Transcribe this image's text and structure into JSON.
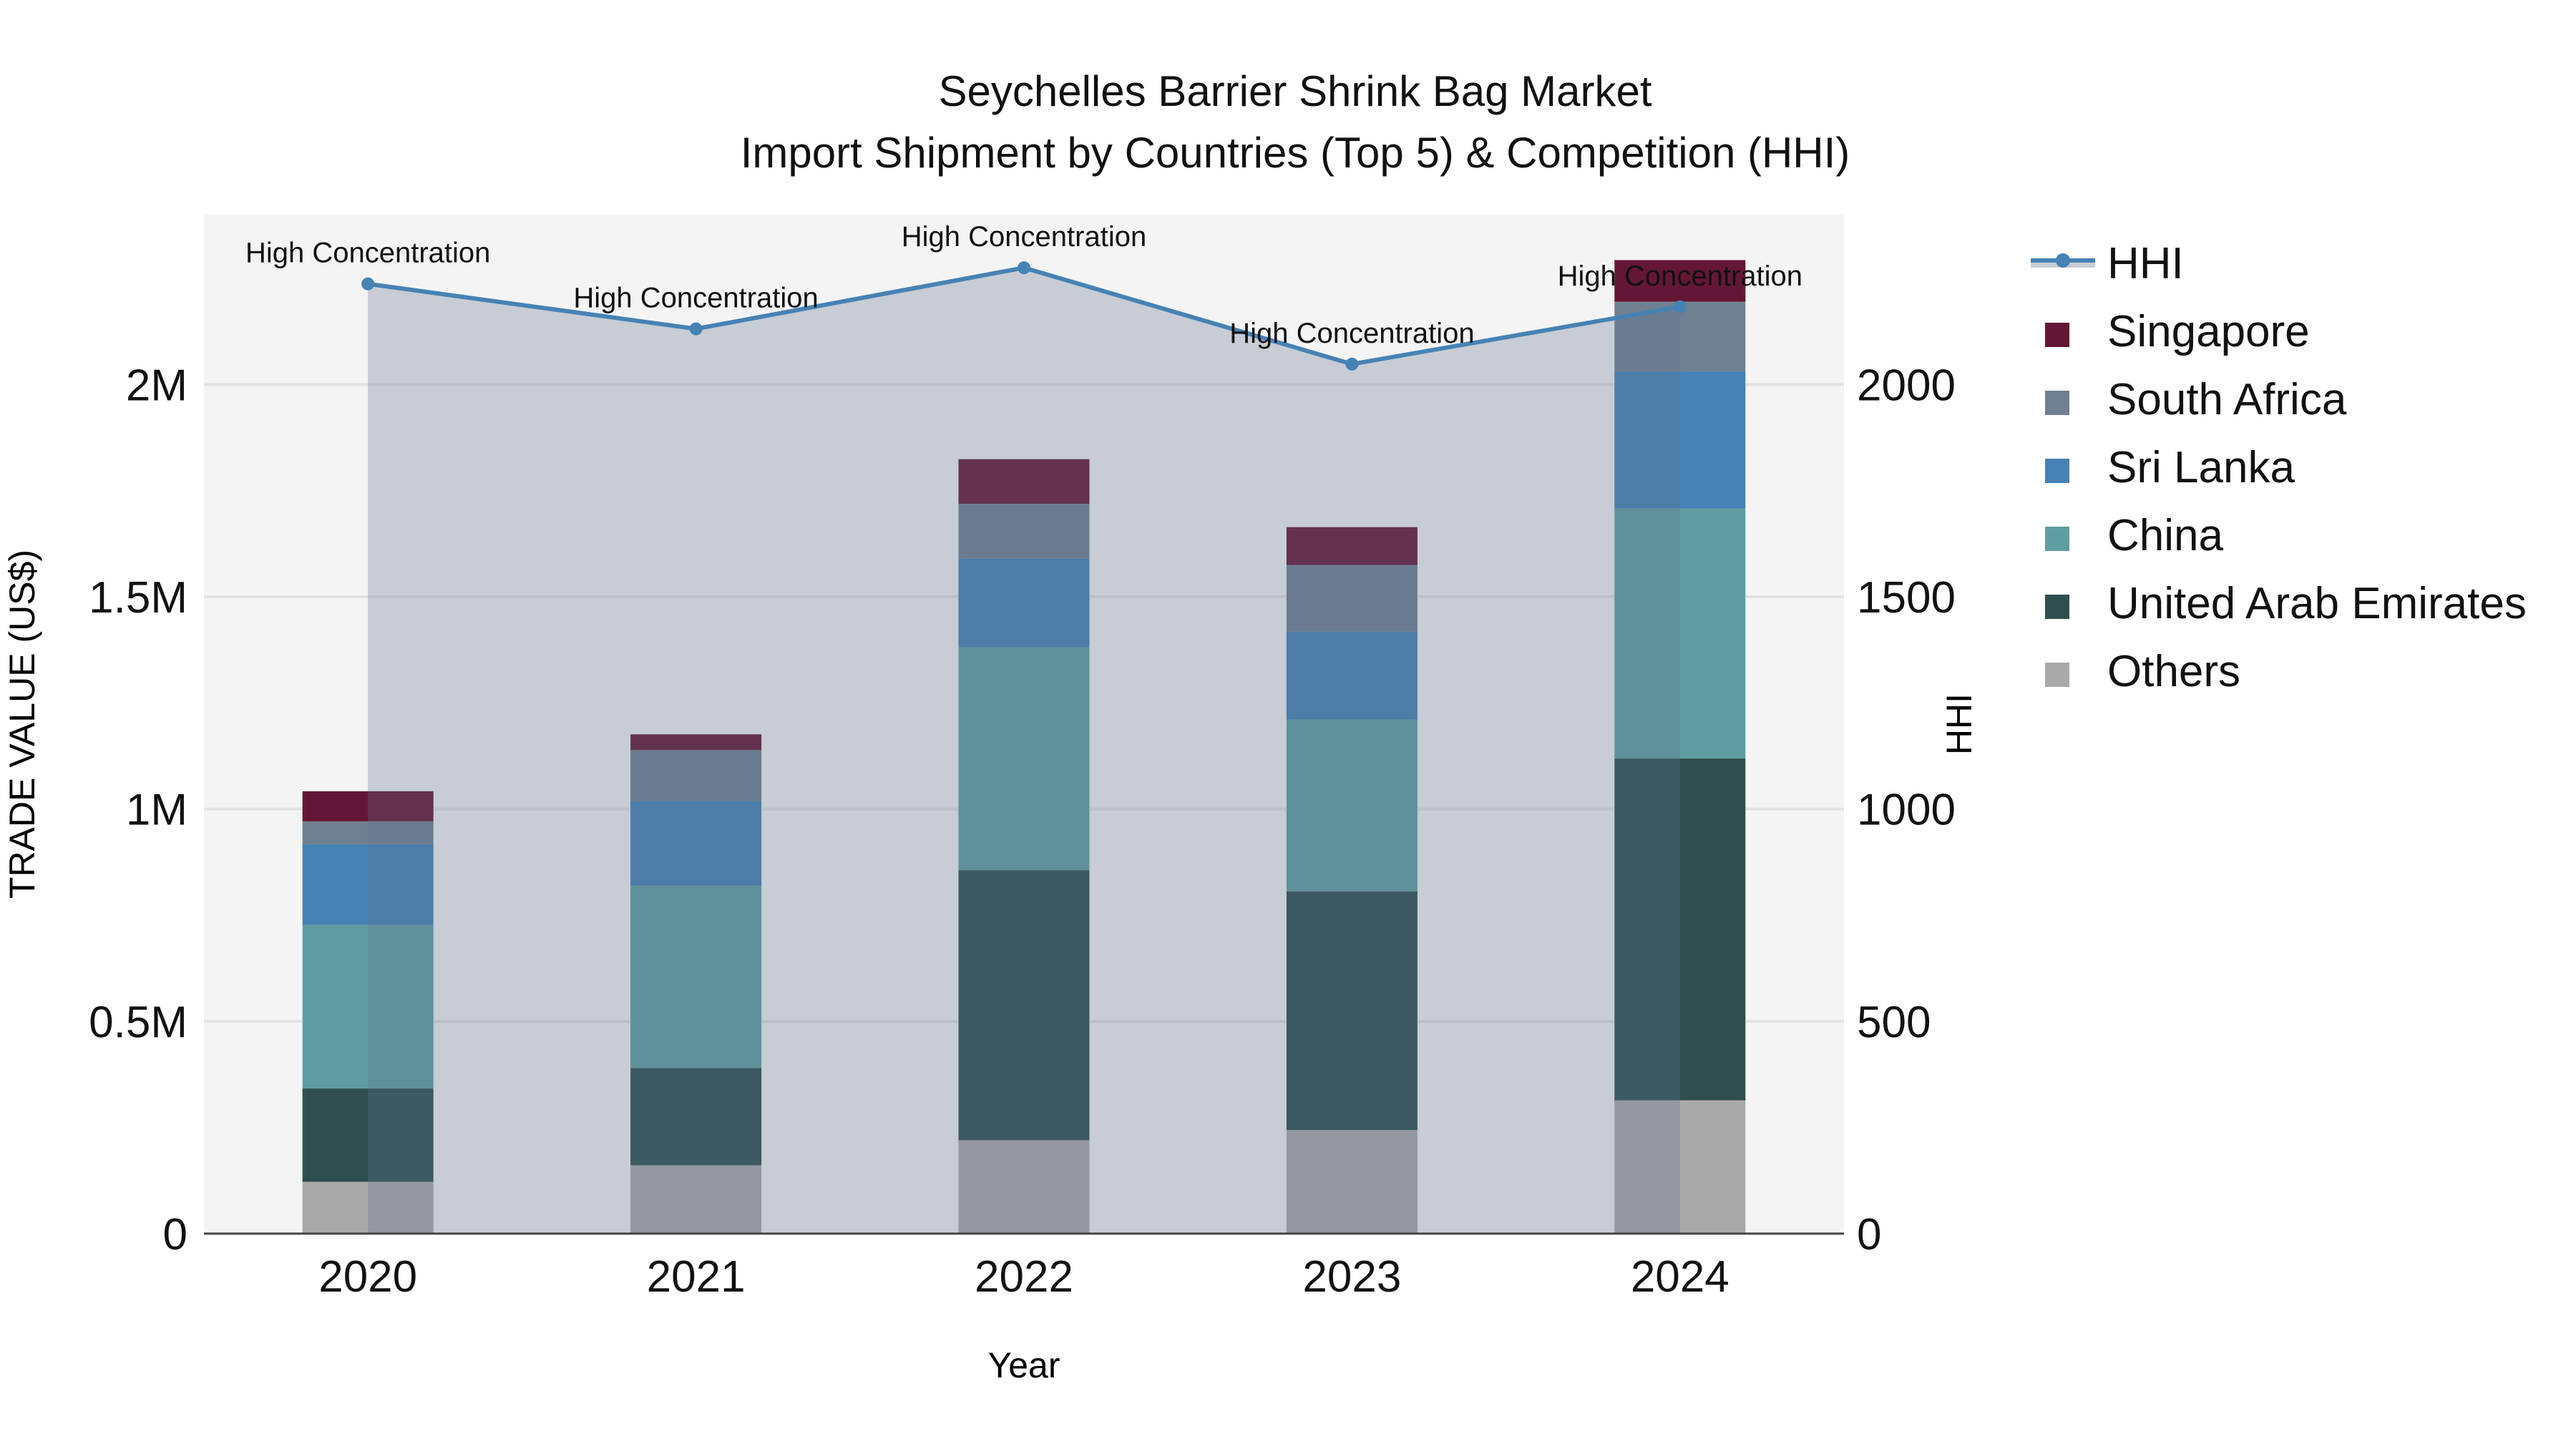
{
  "title": {
    "line1": "Seychelles Barrier Shrink Bag Market",
    "line2": "Import Shipment by Countries (Top 5) & Competition (HHI)"
  },
  "axes": {
    "x_label": "Year",
    "y_left_label": "TRADE VALUE (US$)",
    "y_right_label": "HHI",
    "y_left_ticks": [
      "0",
      "0.5M",
      "1M",
      "1.5M",
      "2M"
    ],
    "y_right_ticks": [
      "0",
      "500",
      "1000",
      "1500",
      "2000"
    ],
    "x_ticks": [
      "2020",
      "2021",
      "2022",
      "2023",
      "2024"
    ]
  },
  "legend": {
    "items": [
      {
        "label": "HHI",
        "kind": "line",
        "color": "#4682b4"
      },
      {
        "label": "Singapore",
        "kind": "bar",
        "color": "#641734"
      },
      {
        "label": "South Africa",
        "kind": "bar",
        "color": "#708090"
      },
      {
        "label": "Sri Lanka",
        "kind": "bar",
        "color": "#4682b4"
      },
      {
        "label": "China",
        "kind": "bar",
        "color": "#5f9ea0"
      },
      {
        "label": "United Arab Emirates",
        "kind": "bar",
        "color": "#2f4f4f"
      },
      {
        "label": "Others",
        "kind": "bar",
        "color": "#a9a9a9"
      }
    ]
  },
  "annotations": [
    "High Concentration",
    "High Concentration",
    "High Concentration",
    "High Concentration",
    "High Concentration"
  ],
  "chart_data": {
    "type": "bar",
    "subtype": "stacked bar with line overlay (secondary axis)",
    "title": "Seychelles Barrier Shrink Bag Market — Import Shipment by Countries (Top 5) & Competition (HHI)",
    "xlabel": "Year",
    "ylabel": "TRADE VALUE (US$)",
    "y2label": "HHI",
    "categories": [
      "2020",
      "2021",
      "2022",
      "2023",
      "2024"
    ],
    "ylim": [
      0,
      2400000
    ],
    "y2lim": [
      0,
      2400
    ],
    "grid": true,
    "legend_position": "right",
    "series": [
      {
        "name": "Others",
        "type": "bar",
        "color": "#a9a9a9",
        "values": [
          122000,
          161000,
          220000,
          244000,
          314000
        ]
      },
      {
        "name": "United Arab Emirates",
        "type": "bar",
        "color": "#2f4f4f",
        "values": [
          220000,
          229000,
          636000,
          562000,
          805000
        ]
      },
      {
        "name": "China",
        "type": "bar",
        "color": "#5f9ea0",
        "values": [
          385000,
          430000,
          525000,
          405000,
          589000
        ]
      },
      {
        "name": "Sri Lanka",
        "type": "bar",
        "color": "#4682b4",
        "values": [
          190000,
          199000,
          209000,
          207000,
          323000
        ]
      },
      {
        "name": "South Africa",
        "type": "bar",
        "color": "#708090",
        "values": [
          54000,
          120000,
          129000,
          157000,
          164000
        ]
      },
      {
        "name": "Singapore",
        "type": "bar",
        "color": "#641734",
        "values": [
          71000,
          37000,
          105000,
          89000,
          98000
        ]
      },
      {
        "name": "HHI",
        "type": "line",
        "axis": "right",
        "color": "#4682b4",
        "fill": "tozeroy",
        "values": [
          2237,
          2131,
          2275,
          2048,
          2183
        ]
      }
    ],
    "totals": [
      1042000,
      1176000,
      1824000,
      1664000,
      2293000
    ],
    "annotations": [
      {
        "x": "2020",
        "text": "High Concentration"
      },
      {
        "x": "2021",
        "text": "High Concentration"
      },
      {
        "x": "2022",
        "text": "High Concentration"
      },
      {
        "x": "2023",
        "text": "High Concentration"
      },
      {
        "x": "2024",
        "text": "High Concentration"
      }
    ]
  }
}
